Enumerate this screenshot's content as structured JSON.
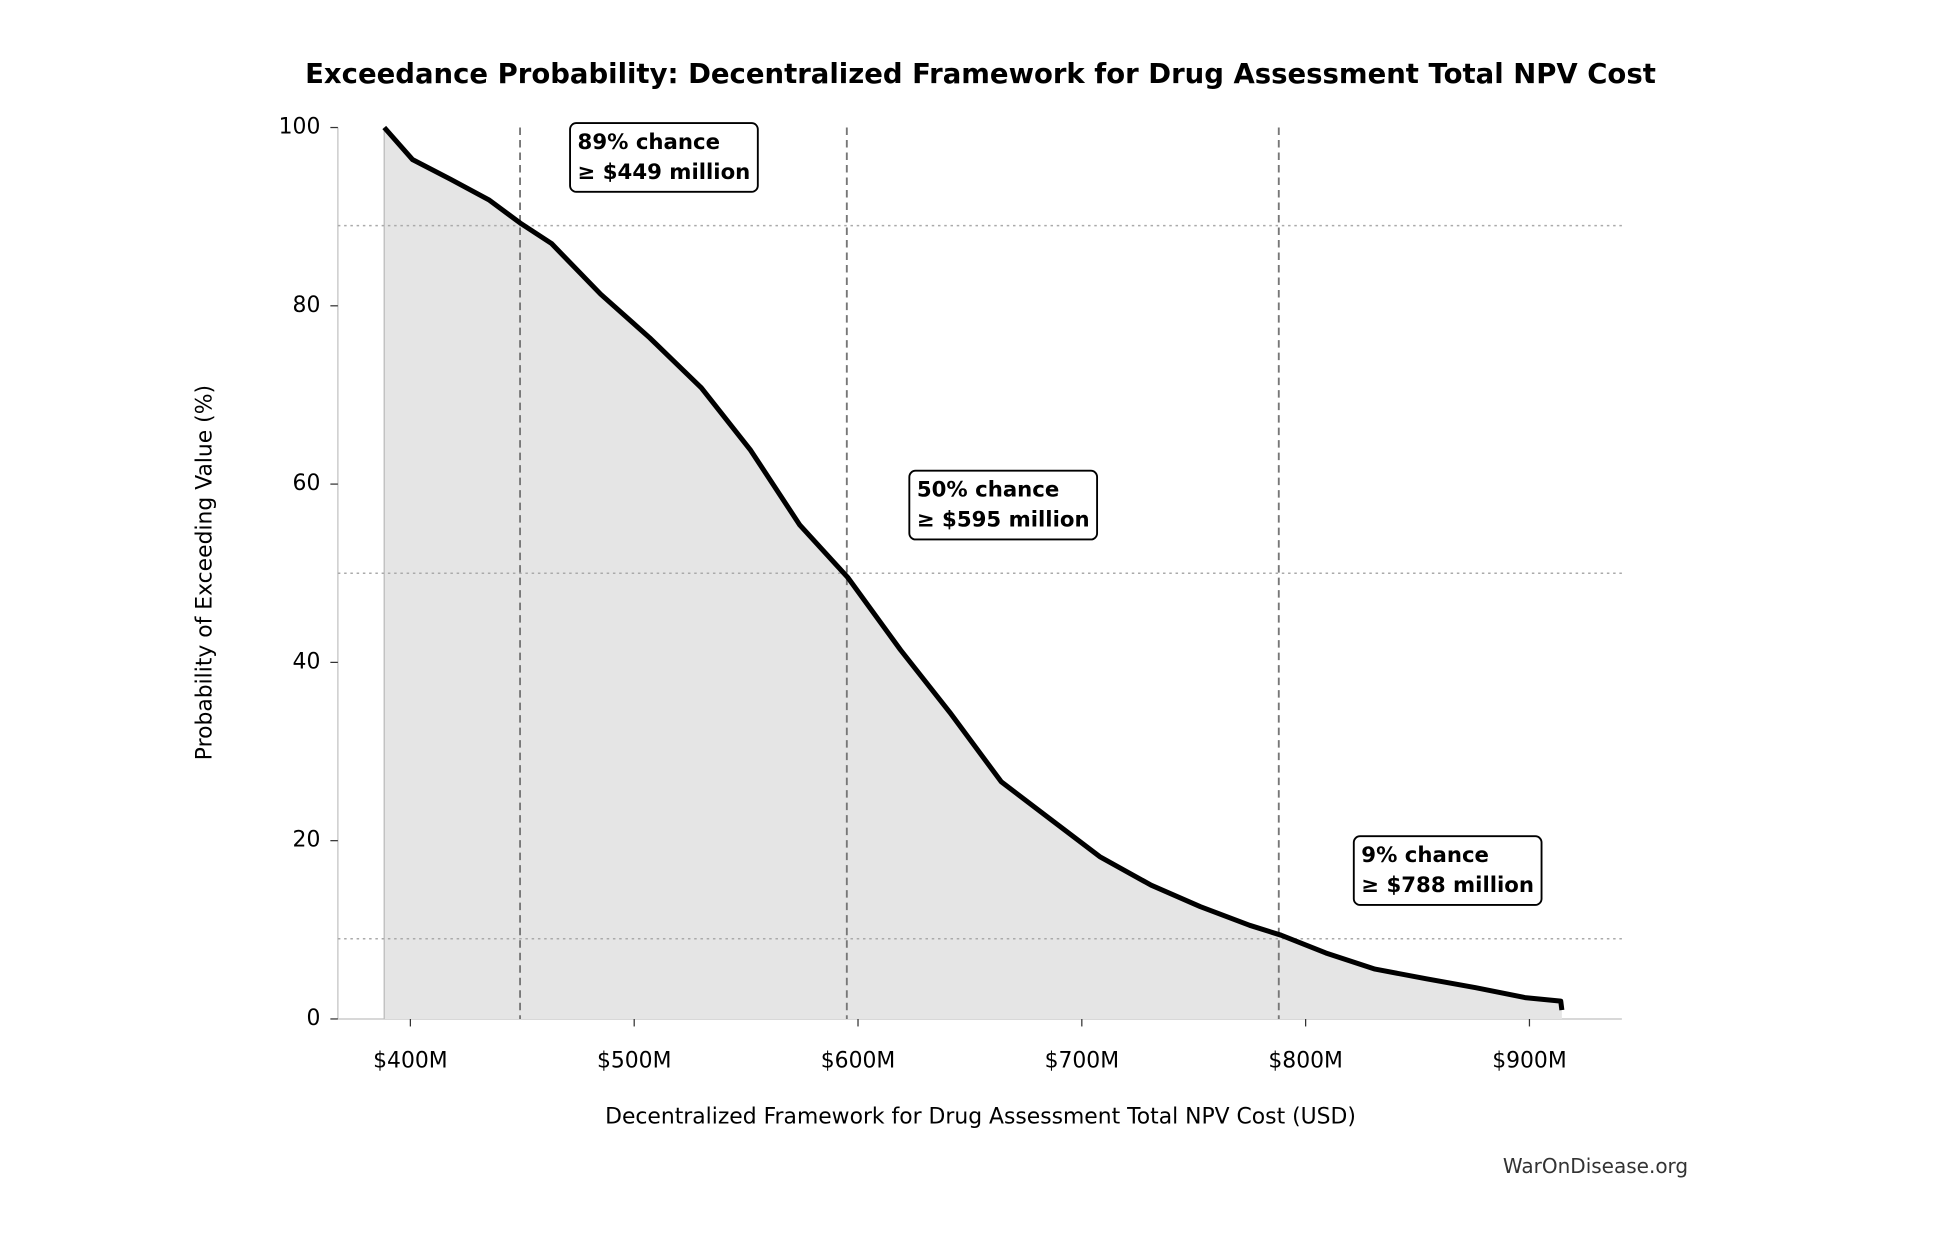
{
  "chart_data": {
    "type": "line",
    "title": "Exceedance Probability: Decentralized Framework for Drug Assessment Total NPV Cost",
    "x_label": "Decentralized Framework for Drug Assessment Total NPV Cost (USD)",
    "y_label": "Probability of Exceeding Value (%)",
    "watermark": "WarOnDisease.org",
    "color": "#000000",
    "fill_color": "#e5e5e5",
    "x": [
      388300000,
      401000000,
      418000000,
      435000000,
      449000000,
      463000000,
      485000000,
      507000000,
      530000000,
      552000000,
      574000000,
      595500000,
      619000000,
      641000000,
      664000000,
      686000000,
      708000000,
      731000000,
      753000000,
      775000000,
      789000000,
      809000000,
      831000000,
      854000000,
      876000000,
      898000000,
      914000000,
      914500000
    ],
    "values": [
      100,
      96.4,
      94.2,
      91.9,
      89.3,
      87,
      81.3,
      76.4,
      70.8,
      63.8,
      55.4,
      49.5,
      41.4,
      34.4,
      26.6,
      22.4,
      18.2,
      15,
      12.6,
      10.5,
      9.4,
      7.4,
      5.6,
      4.5,
      3.5,
      2.4,
      2.0,
      1.0
    ],
    "xlim": [
      367600000,
      941300000
    ],
    "ylim": [
      0,
      100
    ],
    "xticks": [
      {
        "value": 400000000,
        "label": "$400M"
      },
      {
        "value": 500000000,
        "label": "$500M"
      },
      {
        "value": 600000000,
        "label": "$600M"
      },
      {
        "value": 700000000,
        "label": "$700M"
      },
      {
        "value": 800000000,
        "label": "$800M"
      },
      {
        "value": 900000000,
        "label": "$900M"
      }
    ],
    "yticks": [
      0,
      20,
      40,
      60,
      80,
      100
    ],
    "thresholds": [
      {
        "probability": 89,
        "value": 449000000,
        "label": [
          "89% chance",
          "≥ $449 million"
        ]
      },
      {
        "probability": 50,
        "value": 595000000,
        "label": [
          "50% chance",
          "≥ $595 million"
        ]
      },
      {
        "probability": 9,
        "value": 788000000,
        "label": [
          "9% chance",
          "≥ $788 million"
        ]
      }
    ]
  }
}
